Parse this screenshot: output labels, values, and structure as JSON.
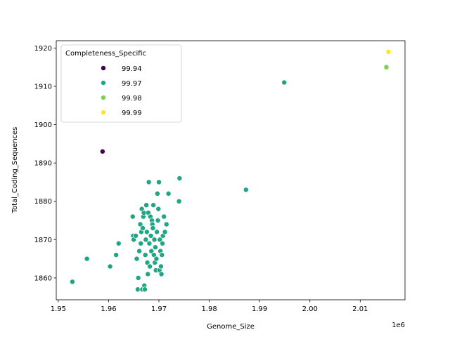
{
  "chart_data": {
    "type": "scatter",
    "xlabel": "Genome_Size",
    "ylabel": "Total_Coding_Sequences",
    "x_offset_label": "1e6",
    "xlim": [
      1949600,
      2018900
    ],
    "ylim": [
      1854.3,
      1921.9
    ],
    "x_ticks": [
      1950000,
      1960000,
      1970000,
      1980000,
      1990000,
      2000000,
      2010000
    ],
    "x_tick_labels": [
      "1.95",
      "1.96",
      "1.97",
      "1.98",
      "1.99",
      "2.00",
      "2.01"
    ],
    "y_ticks": [
      1860,
      1870,
      1880,
      1890,
      1900,
      1910,
      1920
    ],
    "y_tick_labels": [
      "1860",
      "1870",
      "1880",
      "1890",
      "1900",
      "1910",
      "1920"
    ],
    "grid": false,
    "legend": {
      "title": "Completeness_Specific",
      "placement": "upper-left",
      "entries": [
        {
          "label": "99.94",
          "color": "#440154"
        },
        {
          "label": "99.97",
          "color": "#21a685"
        },
        {
          "label": "99.98",
          "color": "#7ad151"
        },
        {
          "label": "99.99",
          "color": "#fde725"
        }
      ]
    },
    "series": [
      {
        "label": "99.94",
        "color": "#440154",
        "points": [
          [
            1958800,
            1893
          ]
        ]
      },
      {
        "label": "99.97",
        "color": "#21a685",
        "points": [
          [
            1952800,
            1859
          ],
          [
            1955700,
            1865
          ],
          [
            1960300,
            1863
          ],
          [
            1961500,
            1866
          ],
          [
            1962000,
            1869
          ],
          [
            1964800,
            1876
          ],
          [
            1964900,
            1871
          ],
          [
            1965000,
            1870
          ],
          [
            1965400,
            1871
          ],
          [
            1965600,
            1865
          ],
          [
            1965800,
            1857
          ],
          [
            1965900,
            1860
          ],
          [
            1966100,
            1867
          ],
          [
            1966300,
            1874
          ],
          [
            1966400,
            1869
          ],
          [
            1966500,
            1872
          ],
          [
            1966600,
            1878
          ],
          [
            1966700,
            1857
          ],
          [
            1966800,
            1873
          ],
          [
            1966900,
            1876
          ],
          [
            1967000,
            1877
          ],
          [
            1967100,
            1858
          ],
          [
            1967200,
            1857
          ],
          [
            1967300,
            1866
          ],
          [
            1967400,
            1870
          ],
          [
            1967500,
            1879
          ],
          [
            1967600,
            1872
          ],
          [
            1967700,
            1864
          ],
          [
            1967800,
            1861
          ],
          [
            1967900,
            1877
          ],
          [
            1968000,
            1885
          ],
          [
            1968100,
            1869
          ],
          [
            1968200,
            1863
          ],
          [
            1968300,
            1876
          ],
          [
            1968400,
            1871
          ],
          [
            1968500,
            1867
          ],
          [
            1968600,
            1875
          ],
          [
            1968700,
            1874
          ],
          [
            1968800,
            1873
          ],
          [
            1968900,
            1879
          ],
          [
            1969000,
            1866
          ],
          [
            1969100,
            1870
          ],
          [
            1969200,
            1864
          ],
          [
            1969300,
            1868
          ],
          [
            1969400,
            1862
          ],
          [
            1969500,
            1865
          ],
          [
            1969600,
            1872
          ],
          [
            1969700,
            1882
          ],
          [
            1969800,
            1875
          ],
          [
            1969900,
            1878
          ],
          [
            1970000,
            1885
          ],
          [
            1970100,
            1862
          ],
          [
            1970200,
            1870
          ],
          [
            1970300,
            1867
          ],
          [
            1970400,
            1863
          ],
          [
            1970500,
            1861
          ],
          [
            1970600,
            1866
          ],
          [
            1970700,
            1869
          ],
          [
            1970800,
            1871
          ],
          [
            1971000,
            1876
          ],
          [
            1971200,
            1872
          ],
          [
            1971500,
            1874
          ],
          [
            1971900,
            1882
          ],
          [
            1974000,
            1880
          ],
          [
            1974100,
            1886
          ],
          [
            1987300,
            1883
          ],
          [
            1994900,
            1911
          ]
        ]
      },
      {
        "label": "99.98",
        "color": "#7ad151",
        "points": [
          [
            2015200,
            1915
          ]
        ]
      },
      {
        "label": "99.99",
        "color": "#fde725",
        "points": [
          [
            2015600,
            1919
          ]
        ]
      }
    ]
  }
}
